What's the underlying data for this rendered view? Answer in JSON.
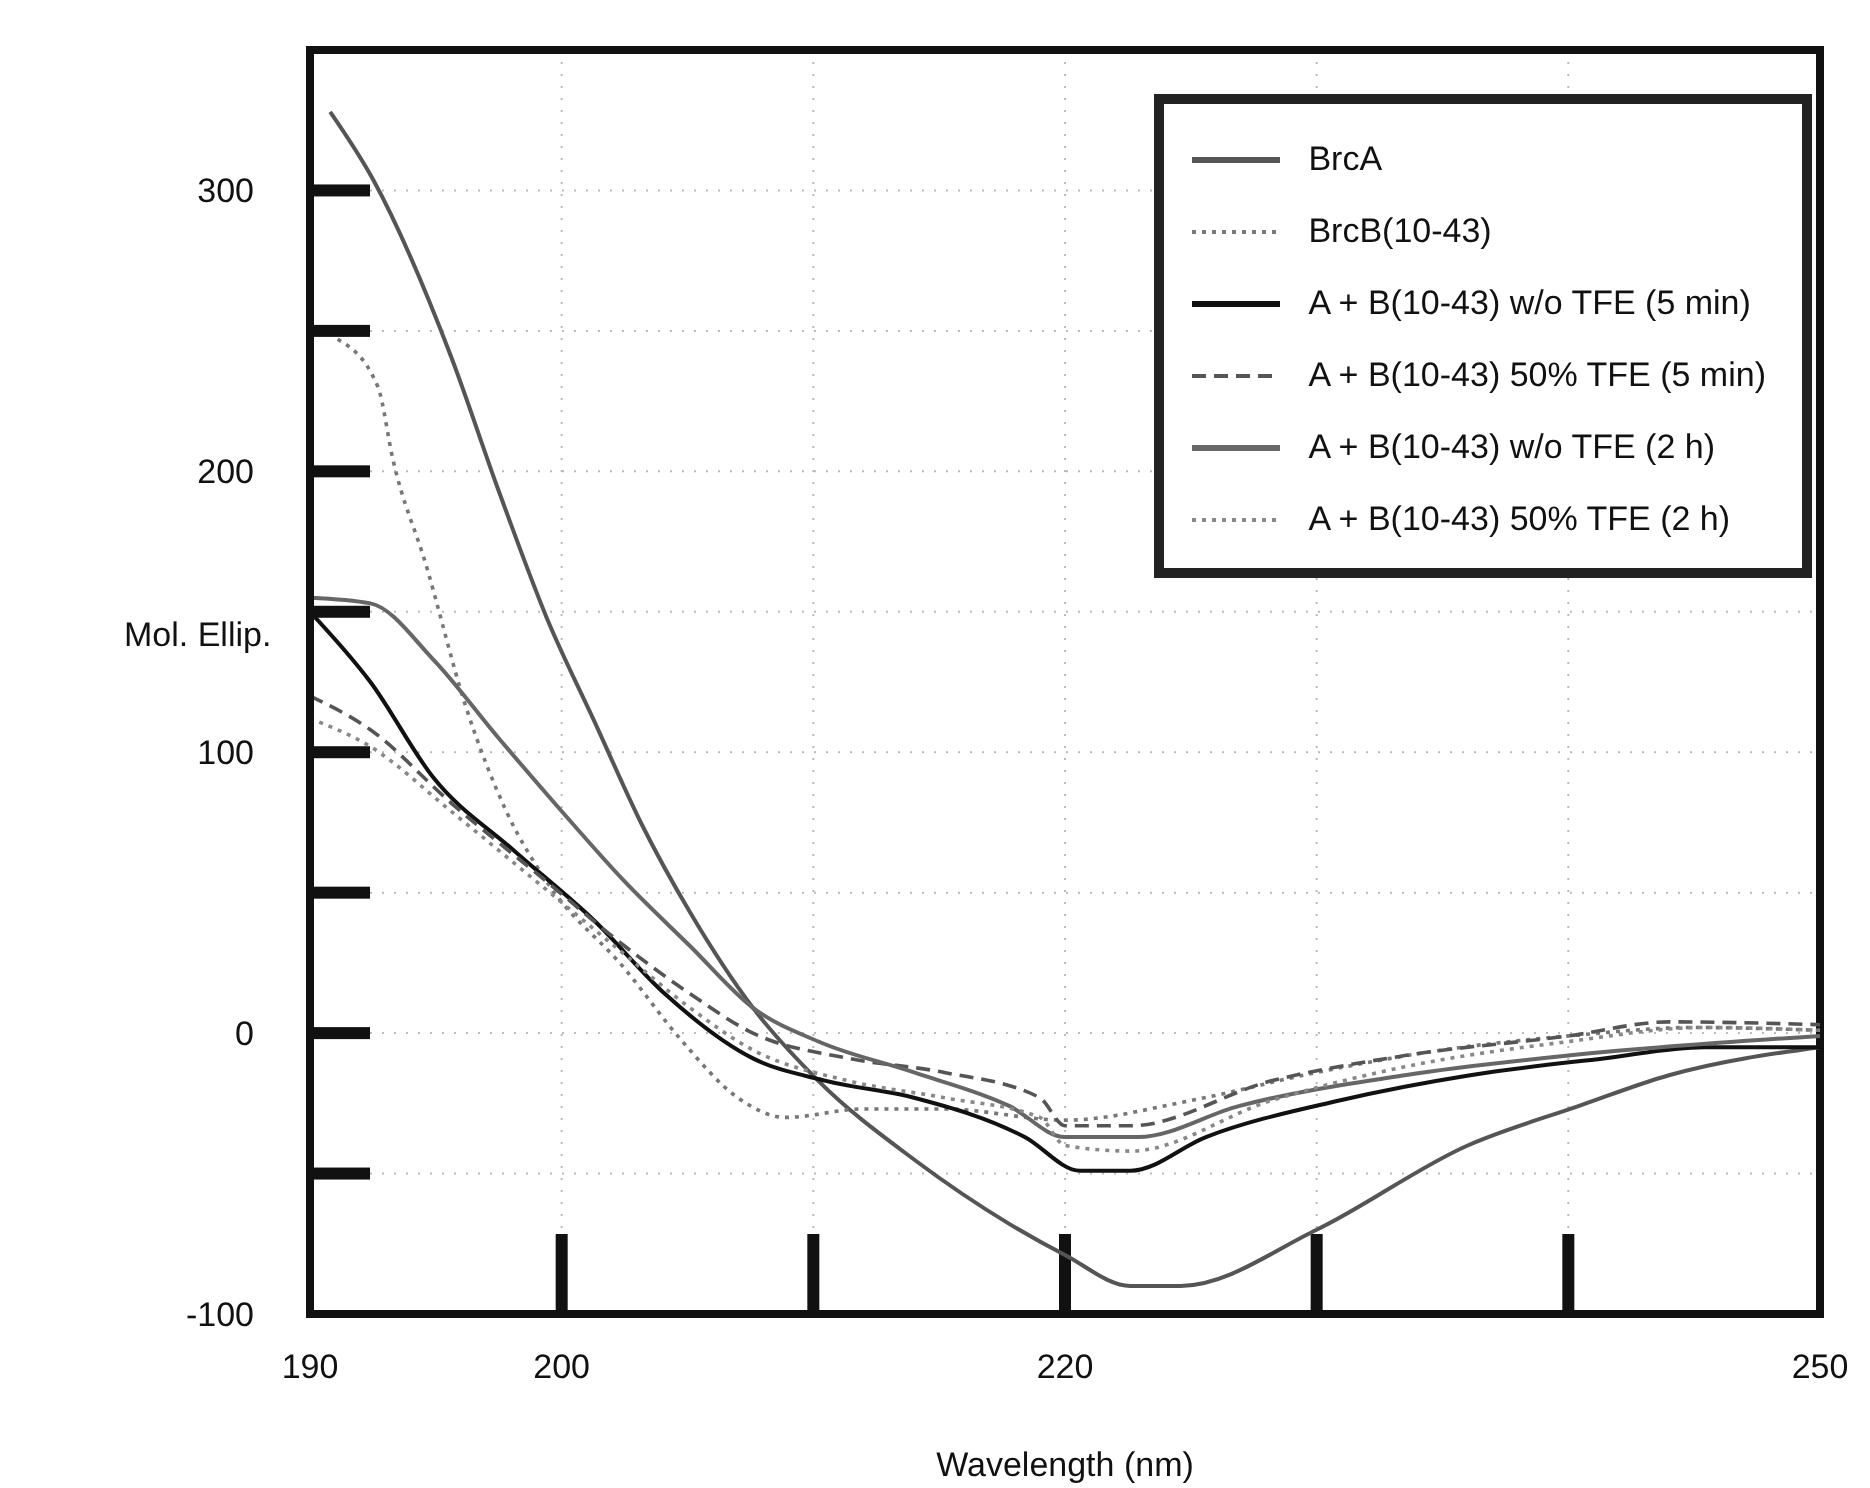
{
  "chart_data": {
    "type": "line",
    "xlabel": "Wavelength (nm)",
    "ylabel": "Mol. Ellip.",
    "xlim": [
      190,
      250
    ],
    "xticks": [
      190,
      200,
      {
        "value": 210,
        "label": null
      },
      220,
      {
        "value": 230,
        "label": null
      },
      {
        "value": 240,
        "label": null
      },
      250
    ],
    "ylim": [
      -100,
      350
    ],
    "yticks": [
      -100,
      {
        "value": -50,
        "label": null
      },
      0,
      {
        "value": 50,
        "label": null
      },
      100,
      {
        "value": 150,
        "label": null
      },
      200,
      {
        "value": 250,
        "label": null
      },
      300
    ],
    "grid": true,
    "legend": "top right",
    "marker": "none",
    "series": [
      {
        "name": "BrcA",
        "color": "#555555",
        "line_style": "solid",
        "x": [
          190.8,
          192.5,
          195.6,
          197.5,
          199.4,
          201.3,
          203.2,
          205.1,
          207.6,
          210.2,
          214,
          217.8,
          220,
          222.6,
          224.6,
          230,
          236,
          240.4,
          244,
          250
        ],
        "values": [
          328,
          304,
          241,
          193,
          148,
          111,
          74,
          43,
          9,
          -17,
          -45,
          -68,
          -79,
          -90,
          -90,
          -70,
          -40,
          -26,
          -15,
          -5
        ]
      },
      {
        "name": "BrcB(10-43)",
        "color": "#777777",
        "line_style": "dotted",
        "x": [
          191.1,
          192.7,
          193.3,
          194.6,
          196.2,
          197.8,
          199.4,
          202.5,
          204.8,
          207,
          208.9,
          212,
          215.2,
          220,
          225,
          230,
          235,
          240,
          245,
          250
        ],
        "values": [
          247,
          230,
          204,
          167,
          116,
          79,
          54,
          23,
          -3,
          -23,
          -30,
          -27,
          -27,
          -31,
          -24,
          -14,
          -6,
          -1,
          2,
          1
        ]
      },
      {
        "name": "A + B(10-43) w/o TFE (5 min)",
        "color": "#111111",
        "line_style": "solid",
        "x": [
          190,
          192.4,
          194.9,
          198.1,
          201.3,
          204.1,
          207.6,
          210.5,
          214,
          218.4,
          220.6,
          222.6,
          225.6,
          230.9,
          236.1,
          241.4,
          245.4,
          250
        ],
        "values": [
          150,
          125,
          91,
          65,
          40,
          14,
          -9,
          -17,
          -23,
          -37,
          -49,
          -49,
          -37,
          -24,
          -15,
          -9,
          -5,
          -5
        ]
      },
      {
        "name": "A + B(10-43) 50% TFE (5 min)",
        "color": "#555555",
        "line_style": "dashed",
        "x": [
          190,
          192.4,
          195.6,
          199.4,
          202.5,
          205.1,
          207.6,
          211.4,
          215.2,
          219,
          220,
          222.6,
          228.2,
          233.5,
          240,
          244,
          250
        ],
        "values": [
          120,
          108,
          82,
          54,
          31,
          14,
          0,
          -9,
          -14,
          -23,
          -33,
          -33,
          -17,
          -8,
          -1,
          4,
          3
        ]
      },
      {
        "name": "A + B(10-43) w/o TFE (2 h)",
        "color": "#666666",
        "line_style": "solid",
        "x": [
          190,
          192.4,
          194.9,
          197.5,
          200,
          202.5,
          205.1,
          207.6,
          210.2,
          214,
          217.8,
          220,
          222.9,
          226.9,
          233.5,
          240,
          250
        ],
        "values": [
          155,
          153,
          133,
          105,
          79,
          54,
          31,
          9,
          -3,
          -14,
          -26,
          -37,
          -37,
          -26,
          -15,
          -8,
          -1
        ]
      },
      {
        "name": "A + B(10-43) 50% TFE (2 h)",
        "color": "#888888",
        "line_style": "dotted",
        "x": [
          190,
          192.4,
          195.6,
          199.4,
          202.5,
          205.1,
          207.6,
          211.4,
          215.2,
          219,
          220,
          222.6,
          228.2,
          233.5,
          240,
          245.4,
          250
        ],
        "values": [
          112,
          102,
          79,
          51,
          28,
          9,
          -6,
          -17,
          -23,
          -30,
          -40,
          -42,
          -24,
          -12,
          -3,
          2,
          1
        ]
      }
    ]
  }
}
